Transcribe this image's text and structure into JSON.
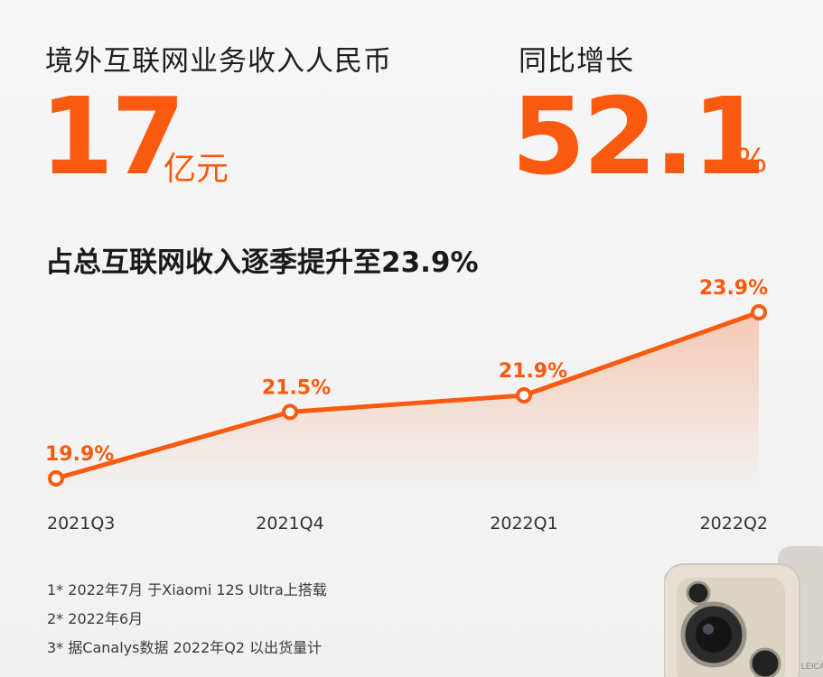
{
  "header": {
    "left_label": "境外互联网业务收入人民币",
    "left_value": "17",
    "left_unit": "亿元",
    "right_label": "同比增长",
    "right_value": "52.1",
    "right_unit": "%"
  },
  "chart_title": "占总互联网收入逐季提升至23.9%",
  "chart_data": {
    "type": "line",
    "title": "占总互联网收入逐季提升至23.9%",
    "categories": [
      "2021Q3",
      "2021Q4",
      "2022Q1",
      "2022Q2"
    ],
    "series": [
      {
        "values": [
          19.9,
          21.5,
          21.9,
          23.9
        ]
      }
    ],
    "data_labels": [
      "19.9%",
      "21.5%",
      "21.9%",
      "23.9%"
    ],
    "y_unit": "%",
    "grid": false,
    "legend": "none",
    "colors": {
      "line": "#fa5a0f",
      "label": "#fa5a0f",
      "axis_text": "#333333"
    }
  },
  "footnotes": [
    "1* 2022年7月 于Xiaomi 12S Ultra上搭载",
    "2* 2022年6月",
    "3* 据Canalys数据 2022年Q2 以出货量计"
  ],
  "phone_badge": "LEICA"
}
